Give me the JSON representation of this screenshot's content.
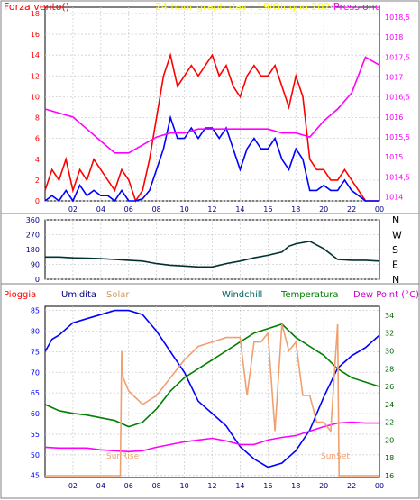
{
  "chart_data": [
    {
      "type": "line",
      "title": "24 hour graph day : 19/Giugno 2024",
      "ylabel_left": "Forza vento()",
      "ylabel_right": "Pressione",
      "x_ticks": [
        "02",
        "04",
        "06",
        "08",
        "10",
        "12",
        "14",
        "16",
        "18",
        "20",
        "22",
        "00"
      ],
      "y_left_ticks": [
        0,
        2,
        4,
        6,
        8,
        10,
        12,
        14,
        16,
        18
      ],
      "y_left_lim": [
        0,
        18.6
      ],
      "y_right_ticks": [
        "1014",
        "1014,5",
        "1015",
        "1015,5",
        "1016",
        "1016,5",
        "1017",
        "1017,5",
        "1018",
        "1018,5"
      ],
      "y_right_lim": [
        1013.9,
        1018.75
      ],
      "series": [
        {
          "name": "Forza vento",
          "axis": "left",
          "color": "#ff0000",
          "x": [
            0,
            0.5,
            1,
            1.5,
            2,
            2.5,
            3,
            3.5,
            4,
            4.5,
            5,
            5.5,
            6,
            6.5,
            7,
            7.5,
            8,
            8.5,
            9,
            9.5,
            10,
            10.5,
            11,
            11.5,
            12,
            12.5,
            13,
            13.5,
            14,
            14.5,
            15,
            15.5,
            16,
            16.5,
            17,
            17.5,
            18,
            18.5,
            19,
            19.5,
            20,
            20.5,
            21,
            21.5,
            22,
            22.5,
            23,
            23.5,
            24
          ],
          "y": [
            1,
            3,
            2,
            4,
            1,
            3,
            2,
            4,
            3,
            2,
            1,
            3,
            2,
            0,
            1,
            4,
            8,
            12,
            14,
            11,
            12,
            13,
            12,
            13,
            14,
            12,
            13,
            11,
            10,
            12,
            13,
            12,
            12,
            13,
            11,
            9,
            12,
            10,
            4,
            3,
            3,
            2,
            2,
            3,
            2,
            1,
            0,
            0,
            0
          ]
        },
        {
          "name": "Raffica",
          "axis": "left",
          "color": "#0000ff",
          "x": [
            0,
            0.5,
            1,
            1.5,
            2,
            2.5,
            3,
            3.5,
            4,
            4.5,
            5,
            5.5,
            6,
            6.5,
            7,
            7.5,
            8,
            8.5,
            9,
            9.5,
            10,
            10.5,
            11,
            11.5,
            12,
            12.5,
            13,
            13.5,
            14,
            14.5,
            15,
            15.5,
            16,
            16.5,
            17,
            17.5,
            18,
            18.5,
            19,
            19.5,
            20,
            20.5,
            21,
            21.5,
            22,
            22.5,
            23,
            23.5,
            24
          ],
          "y": [
            0,
            0.5,
            0,
            1,
            0,
            1.5,
            0.5,
            1,
            0.5,
            0.5,
            0,
            1,
            0,
            0,
            0.2,
            1,
            3,
            5,
            8,
            6,
            6,
            7,
            6,
            7,
            7,
            6,
            7,
            5,
            3,
            5,
            6,
            5,
            5,
            6,
            4,
            3,
            5,
            4,
            1,
            1,
            1.5,
            1,
            1,
            2,
            1,
            0.5,
            0,
            0,
            0
          ]
        },
        {
          "name": "Pressione",
          "axis": "right",
          "color": "#ff00ff",
          "x": [
            0,
            1,
            2,
            3,
            4,
            5,
            6,
            7,
            8,
            9,
            10,
            11,
            12,
            13,
            14,
            15,
            16,
            17,
            18,
            19,
            20,
            21,
            22,
            23,
            24
          ],
          "y": [
            1016.2,
            1016.1,
            1016,
            1015.7,
            1015.4,
            1015.1,
            1015.1,
            1015.3,
            1015.5,
            1015.6,
            1015.6,
            1015.7,
            1015.7,
            1015.7,
            1015.7,
            1015.7,
            1015.7,
            1015.6,
            1015.6,
            1015.5,
            1015.9,
            1016.2,
            1016.6,
            1017.5,
            1017.3
          ]
        }
      ]
    },
    {
      "type": "line",
      "title": "",
      "y_left_ticks": [
        0,
        90,
        180,
        270,
        360
      ],
      "y_left_lim": [
        0,
        360
      ],
      "y_right_ticks": [
        "N",
        "W",
        "S",
        "E",
        "N"
      ],
      "x_ticks": [],
      "series": [
        {
          "name": "Direzione vento",
          "color": "#003030",
          "x": [
            0,
            1,
            2,
            3,
            4,
            5,
            6,
            7,
            8,
            9,
            10,
            11,
            12,
            13,
            14,
            15,
            16,
            17,
            17.5,
            18,
            19,
            20,
            21,
            22,
            23,
            24
          ],
          "y": [
            135,
            135,
            130,
            128,
            125,
            120,
            115,
            110,
            95,
            85,
            80,
            75,
            75,
            95,
            110,
            130,
            145,
            165,
            200,
            215,
            230,
            185,
            120,
            115,
            115,
            110
          ]
        }
      ]
    },
    {
      "type": "line",
      "title": "",
      "legend": [
        "Pioggia",
        "Umidita",
        "Solar",
        "Windchill",
        "Temperatura",
        "Dew Point (°C)"
      ],
      "legend_colors": [
        "#ff0000",
        "#000080",
        "#cc9966",
        "#006060",
        "#008000",
        "#cc00cc"
      ],
      "x_ticks": [
        "02",
        "04",
        "06",
        "08",
        "10",
        "12",
        "14",
        "16",
        "18",
        "20",
        "22",
        "00"
      ],
      "y_left_ticks": [
        45,
        50,
        55,
        60,
        65,
        70,
        75,
        80,
        85
      ],
      "y_left_lim": [
        44.5,
        86
      ],
      "y_right_ticks": [
        16,
        18,
        20,
        22,
        24,
        26,
        28,
        30,
        32,
        34
      ],
      "y_right_lim": [
        15.8,
        35
      ],
      "annotations": [
        "SunRise",
        "SunSet"
      ],
      "series": [
        {
          "name": "Umidita",
          "axis": "left",
          "color": "#0000ff",
          "x": [
            0,
            0.5,
            1,
            2,
            3,
            4,
            5,
            6,
            7,
            8,
            9,
            10,
            11,
            12,
            13,
            14,
            15,
            16,
            17,
            18,
            19,
            20,
            21,
            22,
            23,
            24
          ],
          "y": [
            75,
            78,
            79,
            82,
            83,
            84,
            85,
            85,
            84,
            80,
            75,
            70,
            63,
            60,
            57,
            52,
            49,
            47,
            48,
            51,
            56,
            64,
            71,
            74,
            76,
            79
          ]
        },
        {
          "name": "Temperatura",
          "axis": "right",
          "color": "#008000",
          "x": [
            0,
            1,
            2,
            3,
            4,
            5,
            6,
            7,
            8,
            9,
            10,
            11,
            12,
            13,
            14,
            15,
            16,
            17,
            18,
            19,
            20,
            21,
            22,
            23,
            24
          ],
          "y": [
            24,
            23.3,
            23,
            22.8,
            22.5,
            22.2,
            21.5,
            22,
            23.5,
            25.5,
            27,
            28,
            29,
            30,
            31,
            32,
            32.5,
            33,
            31.5,
            30.5,
            29.5,
            28,
            27,
            26.5,
            26
          ]
        },
        {
          "name": "Dew Point",
          "axis": "right",
          "color": "#ff00ff",
          "x": [
            0,
            1,
            2,
            3,
            4,
            5,
            6,
            7,
            8,
            9,
            10,
            11,
            12,
            13,
            14,
            15,
            16,
            17,
            18,
            19,
            20,
            21,
            22,
            23,
            24
          ],
          "y": [
            19.2,
            19.1,
            19.1,
            19.1,
            18.9,
            18.8,
            18.7,
            18.8,
            19.2,
            19.5,
            19.8,
            20,
            20.2,
            19.9,
            19.5,
            19.5,
            20,
            20.3,
            20.5,
            21,
            21.5,
            21.9,
            22,
            21.9,
            21.9
          ]
        },
        {
          "name": "Solar",
          "axis": "right",
          "color": "#f0a070",
          "x": [
            0,
            5.4,
            5.5,
            5.6,
            6,
            7,
            8,
            9,
            10,
            11,
            12,
            13,
            14,
            14.5,
            15,
            15.5,
            16,
            16.5,
            17,
            17.5,
            18,
            18.5,
            19,
            19.5,
            20,
            20.5,
            21,
            21.1,
            21.2,
            24
          ],
          "y": [
            16,
            16,
            30,
            27,
            25.5,
            24,
            25,
            27,
            29,
            30.5,
            31,
            31.5,
            31.5,
            25,
            31,
            31,
            32,
            21,
            33,
            30,
            31,
            25,
            25,
            22,
            22,
            21,
            33,
            16,
            16,
            16
          ]
        }
      ]
    }
  ]
}
